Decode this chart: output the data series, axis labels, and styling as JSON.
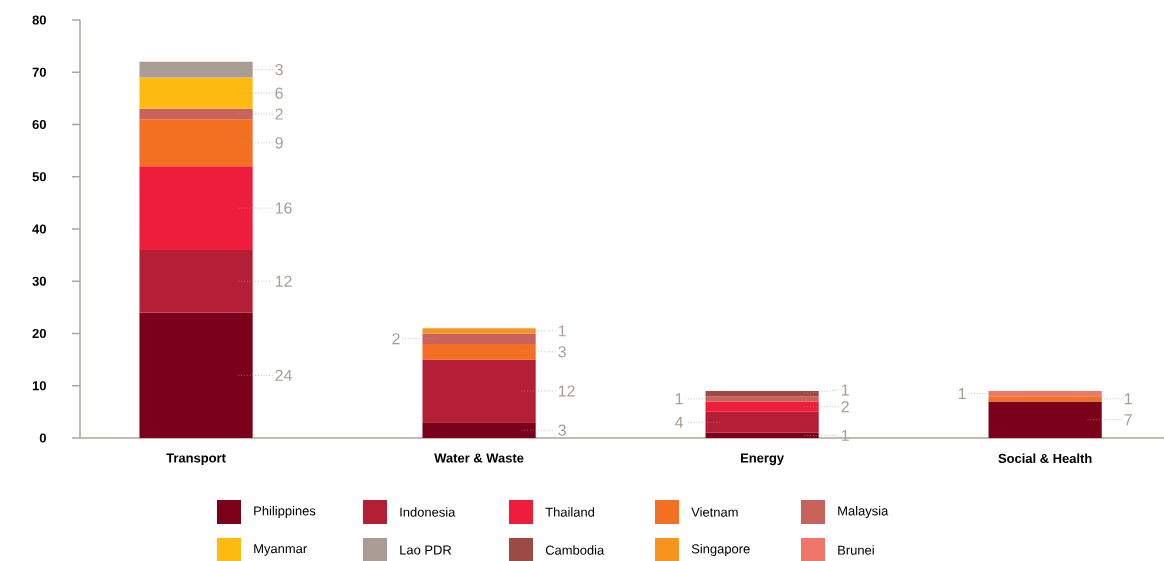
{
  "chart_data": {
    "type": "bar",
    "stacked": true,
    "categories": [
      "Transport",
      "Water & Waste",
      "Energy",
      "Social & Health"
    ],
    "series": [
      {
        "name": "Philippines",
        "color": "#7b0019",
        "values": [
          24,
          3,
          1,
          7
        ]
      },
      {
        "name": "Indonesia",
        "color": "#b51f35",
        "values": [
          12,
          12,
          4,
          null
        ]
      },
      {
        "name": "Thailand",
        "color": "#ee1d3b",
        "values": [
          16,
          null,
          2,
          null
        ]
      },
      {
        "name": "Vietnam",
        "color": "#f36f21",
        "values": [
          9,
          3,
          null,
          1
        ]
      },
      {
        "name": "Malaysia",
        "color": "#c8625a",
        "values": [
          2,
          2,
          1,
          null
        ]
      },
      {
        "name": "Myanmar",
        "color": "#fdbb12",
        "values": [
          6,
          null,
          null,
          null
        ]
      },
      {
        "name": "Lao PDR",
        "color": "#a89c94",
        "values": [
          3,
          null,
          null,
          null
        ]
      },
      {
        "name": "Cambodia",
        "color": "#9c4a44",
        "values": [
          null,
          null,
          1,
          null
        ]
      },
      {
        "name": "Singapore",
        "color": "#f7941d",
        "values": [
          null,
          1,
          null,
          null
        ]
      },
      {
        "name": "Brunei",
        "color": "#f0766a",
        "values": [
          null,
          null,
          null,
          1
        ]
      }
    ],
    "ylim": [
      0,
      80
    ],
    "yticks": [
      0,
      10,
      20,
      30,
      40,
      50,
      60,
      70,
      80
    ],
    "data_labels": true,
    "legend": "bottom"
  }
}
